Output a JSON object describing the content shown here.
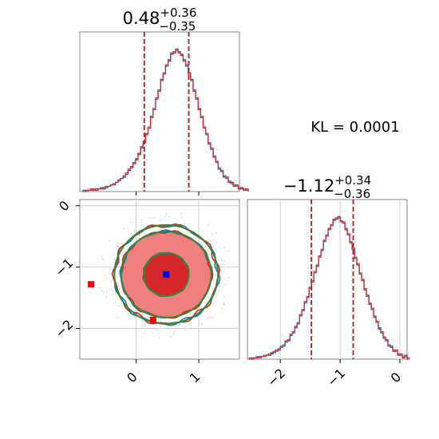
{
  "chart_data": [
    {
      "panel": "top-left",
      "type": "histogram",
      "parameter_index": 0,
      "title": {
        "main": "0.48",
        "plus": "+0.36",
        "minus": "−0.35"
      },
      "median": 0.48,
      "quantile_lines": [
        0.13,
        0.84
      ],
      "xlim": [
        -0.9,
        1.65
      ],
      "bins_start": -0.85,
      "bin_width": 0.04,
      "series": [
        {
          "name": "",
          "color": "#1f77b4",
          "values": [
            1,
            0,
            1,
            1,
            2,
            1,
            2,
            3,
            2,
            3,
            4,
            5,
            5,
            7,
            8,
            10,
            12,
            13,
            16,
            18,
            21,
            25,
            28,
            33,
            38,
            43,
            49,
            56,
            63,
            70,
            77,
            84,
            90,
            95,
            100,
            104,
            106,
            107,
            106,
            103,
            100,
            95,
            90,
            84,
            77,
            70,
            63,
            56,
            49,
            43,
            37,
            32,
            27,
            22,
            18,
            15,
            12,
            10,
            8,
            6,
            5,
            4,
            3,
            2,
            2,
            1
          ]
        },
        {
          "name": "",
          "color": "#d62728",
          "values": [
            0,
            1,
            1,
            2,
            1,
            2,
            2,
            2,
            3,
            4,
            4,
            5,
            6,
            7,
            9,
            10,
            11,
            14,
            17,
            19,
            22,
            24,
            29,
            34,
            37,
            44,
            48,
            57,
            62,
            71,
            76,
            85,
            89,
            96,
            99,
            105,
            105,
            108,
            105,
            104,
            99,
            96,
            89,
            85,
            76,
            71,
            62,
            57,
            48,
            44,
            36,
            33,
            26,
            23,
            17,
            16,
            11,
            11,
            7,
            7,
            4,
            5,
            2,
            3,
            1,
            2
          ]
        }
      ]
    },
    {
      "panel": "top-right-annotation",
      "type": "text",
      "text": "KL = 0.0001"
    },
    {
      "panel": "bottom-left",
      "type": "contour",
      "xlim": [
        -0.9,
        1.65
      ],
      "ylim": [
        -2.5,
        0.1
      ],
      "xticks": [
        0,
        1
      ],
      "yticks": [
        0,
        -1,
        -2
      ],
      "xtick_labels": [
        "0",
        "1"
      ],
      "ytick_labels": [
        "0",
        "−1",
        "−2"
      ],
      "grid": true,
      "center": {
        "x": 0.48,
        "y": -1.12
      },
      "sigma": {
        "x": 0.36,
        "y": 0.35
      },
      "contour_levels_sigma": [
        1,
        2,
        2.3
      ],
      "contour_colors": {
        "sample_a": "#1f77b4",
        "sample_b": "#d62728",
        "analytic": "#2e8b2e"
      },
      "fill_colors": [
        "#f08080",
        "#d62728"
      ],
      "markers": [
        {
          "color": "#0000ff",
          "shape": "square",
          "x": 0.48,
          "y": -1.12
        },
        {
          "color": "#ff0000",
          "shape": "square",
          "x": -0.72,
          "y": -1.28
        },
        {
          "color": "#ff0000",
          "shape": "square",
          "x": 0.27,
          "y": -1.86
        }
      ]
    },
    {
      "panel": "bottom-right",
      "type": "histogram",
      "parameter_index": 1,
      "title": {
        "main": "−1.12",
        "plus": "+0.34",
        "minus": "−0.36"
      },
      "median": -1.12,
      "quantile_lines": [
        -1.48,
        -0.78
      ],
      "xlim": [
        -2.55,
        0.12
      ],
      "xticks": [
        -2,
        -1,
        0
      ],
      "xtick_labels": [
        "−2",
        "−1",
        "0"
      ],
      "grid": true,
      "bins_start": -2.52,
      "bin_width": 0.04,
      "series": [
        {
          "name": "",
          "color": "#1f77b4",
          "values": [
            0,
            1,
            1,
            2,
            1,
            2,
            3,
            3,
            4,
            5,
            6,
            6,
            8,
            9,
            11,
            13,
            15,
            18,
            21,
            24,
            28,
            33,
            38,
            43,
            48,
            54,
            60,
            66,
            72,
            78,
            84,
            90,
            95,
            99,
            103,
            106,
            108,
            108,
            106,
            104,
            100,
            95,
            90,
            84,
            78,
            72,
            66,
            60,
            54,
            48,
            43,
            38,
            33,
            28,
            24,
            20,
            17,
            14,
            11,
            9,
            7,
            6,
            4,
            3,
            2,
            2,
            1
          ]
        },
        {
          "name": "",
          "color": "#d62728",
          "values": [
            1,
            0,
            1,
            1,
            2,
            2,
            2,
            3,
            3,
            4,
            5,
            7,
            7,
            10,
            10,
            14,
            14,
            19,
            20,
            25,
            27,
            34,
            37,
            44,
            47,
            55,
            59,
            67,
            71,
            79,
            83,
            91,
            94,
            100,
            102,
            107,
            107,
            109,
            105,
            105,
            99,
            96,
            89,
            85,
            77,
            73,
            65,
            61,
            53,
            49,
            42,
            39,
            32,
            29,
            23,
            21,
            16,
            15,
            10,
            10,
            6,
            7,
            3,
            4,
            1,
            3,
            0
          ]
        }
      ]
    }
  ]
}
